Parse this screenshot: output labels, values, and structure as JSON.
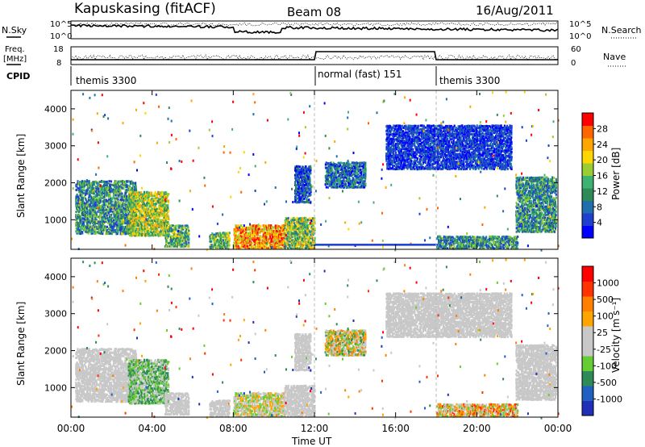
{
  "header": {
    "radar": "Kapuskasing (fitACF)",
    "beam": "Beam 08",
    "date": "16/Aug/2011"
  },
  "top_panels": {
    "nsky_label": "N.Sky",
    "nsearch_label": "N.Search",
    "nsky_tick_top": "10^5",
    "nsky_tick_bottom": "10^0",
    "nsearch_tick_top": "10^5",
    "nsearch_tick_bottom": "10^0",
    "freq_label_1": "Freq.",
    "freq_label_2": "[MHz]",
    "freq_tick_top": "18",
    "freq_tick_bottom": "8",
    "nave_label": "Nave",
    "nave_tick_top": "60",
    "nave_tick_bottom": "0",
    "cpid_label": "CPID",
    "cpid_segments": [
      "themis 3300",
      "normal (fast) 151",
      "themis 3300"
    ]
  },
  "colors": {
    "power": [
      "#0000ff",
      "#1e3fd0",
      "#1f6faf",
      "#2e8b57",
      "#3cb371",
      "#9acd32",
      "#ffd700",
      "#ffa500",
      "#ff6600",
      "#ff0000"
    ],
    "velocity": [
      "#1f2fb8",
      "#2060c0",
      "#2e8b57",
      "#66cc33",
      "#c8c8c8",
      "#c8c8c8",
      "#ffa500",
      "#ff7f00",
      "#ff3300",
      "#ff0000"
    ],
    "ground": "#c0c0c0"
  },
  "chart_data": [
    {
      "type": "heatmap",
      "name": "power",
      "ylabel": "Slant Range [km]",
      "ylim": [
        200,
        4500
      ],
      "yticks": [
        "1000",
        "2000",
        "3000",
        "4000"
      ],
      "xticks": [
        "00:00",
        "04:00",
        "08:00",
        "12:00",
        "16:00",
        "20:00",
        "00:00"
      ],
      "xlim": [
        0,
        24
      ],
      "colorbar_label": "Power [dB]",
      "colorbar_ticks": [
        "28",
        "24",
        "20",
        "16",
        "12",
        "8",
        "4"
      ],
      "regions": [
        {
          "t": [
            0.2,
            3.2
          ],
          "r": [
            650,
            2100
          ],
          "level": [
            1,
            5
          ]
        },
        {
          "t": [
            2.8,
            4.8
          ],
          "r": [
            600,
            1800
          ],
          "level": [
            3,
            7
          ]
        },
        {
          "t": [
            4.6,
            5.8
          ],
          "r": [
            300,
            900
          ],
          "level": [
            2,
            6
          ]
        },
        {
          "t": [
            6.8,
            7.8
          ],
          "r": [
            250,
            700
          ],
          "level": [
            2,
            6
          ]
        },
        {
          "t": [
            8.0,
            10.5
          ],
          "r": [
            250,
            900
          ],
          "level": [
            5,
            9
          ]
        },
        {
          "t": [
            10.5,
            12.0
          ],
          "r": [
            250,
            1100
          ],
          "level": [
            2,
            7
          ]
        },
        {
          "t": [
            11.0,
            11.8
          ],
          "r": [
            1500,
            2500
          ],
          "level": [
            0,
            3
          ]
        },
        {
          "t": [
            12.5,
            14.5
          ],
          "r": [
            1900,
            2600
          ],
          "level": [
            0,
            4
          ]
        },
        {
          "t": [
            15.5,
            21.7
          ],
          "r": [
            2400,
            3600
          ],
          "level": [
            0,
            2
          ]
        },
        {
          "t": [
            18.0,
            22.0
          ],
          "r": [
            250,
            600
          ],
          "level": [
            1,
            5
          ]
        },
        {
          "t": [
            21.9,
            23.9
          ],
          "r": [
            700,
            2200
          ],
          "level": [
            1,
            5
          ]
        }
      ],
      "horizontal_band": {
        "r": 350,
        "t": [
          12.0,
          18.0
        ]
      }
    },
    {
      "type": "heatmap",
      "name": "velocity",
      "ylabel": "Slant Range [km]",
      "xlabel": "Time UT",
      "ylim": [
        200,
        4500
      ],
      "yticks": [
        "1000",
        "2000",
        "3000",
        "4000"
      ],
      "xticks": [
        "00:00",
        "04:00",
        "08:00",
        "12:00",
        "16:00",
        "20:00",
        "00:00"
      ],
      "xlim": [
        0,
        24
      ],
      "colorbar_label": "Velocity [m s⁻¹]",
      "colorbar_ticks": [
        "1000",
        "500",
        "100",
        "25",
        "-25",
        "-100",
        "-500",
        "-1000"
      ],
      "regions": [
        {
          "t": [
            0.2,
            3.2
          ],
          "r": [
            650,
            2100
          ],
          "level": [
            4,
            5
          ]
        },
        {
          "t": [
            2.8,
            4.8
          ],
          "r": [
            600,
            1800
          ],
          "level": [
            2,
            4
          ]
        },
        {
          "t": [
            4.6,
            5.8
          ],
          "r": [
            300,
            900
          ],
          "level": [
            4,
            5
          ]
        },
        {
          "t": [
            6.8,
            7.8
          ],
          "r": [
            250,
            700
          ],
          "level": [
            4,
            5
          ]
        },
        {
          "t": [
            8.0,
            10.5
          ],
          "r": [
            250,
            900
          ],
          "level": [
            3,
            6
          ]
        },
        {
          "t": [
            10.5,
            12.0
          ],
          "r": [
            250,
            1100
          ],
          "level": [
            4,
            5
          ]
        },
        {
          "t": [
            11.0,
            11.8
          ],
          "r": [
            1500,
            2500
          ],
          "level": [
            4,
            5
          ]
        },
        {
          "t": [
            12.5,
            14.5
          ],
          "r": [
            1900,
            2600
          ],
          "level": [
            2,
            7
          ]
        },
        {
          "t": [
            15.5,
            21.7
          ],
          "r": [
            2400,
            3600
          ],
          "level": [
            4,
            5
          ]
        },
        {
          "t": [
            18.0,
            22.0
          ],
          "r": [
            250,
            600
          ],
          "level": [
            3,
            8
          ]
        },
        {
          "t": [
            21.9,
            23.9
          ],
          "r": [
            700,
            2200
          ],
          "level": [
            4,
            5
          ]
        }
      ]
    }
  ]
}
